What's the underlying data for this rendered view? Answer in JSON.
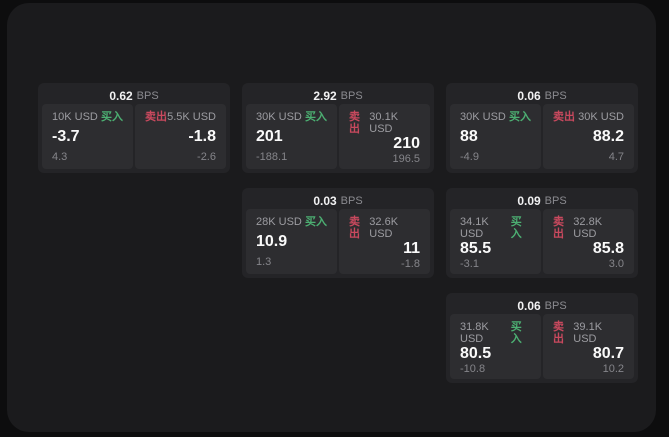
{
  "colors": {
    "buy_green": "#4caf72",
    "sell_red": "#c9495e",
    "panel_bg": "#1b1b1d",
    "card_bg": "#242427",
    "pane_bg": "#2d2d30"
  },
  "cards": [
    {
      "bps_value": "0.62",
      "bps_unit": "BPS",
      "buy": {
        "notional": "10K USD",
        "side_label": "买入",
        "value": "-3.7",
        "delta": "4.3"
      },
      "sell": {
        "side_label": "卖出",
        "notional": "5.5K USD",
        "value": "-1.8",
        "delta": "-2.6"
      }
    },
    {
      "bps_value": "2.92",
      "bps_unit": "BPS",
      "buy": {
        "notional": "30K USD",
        "side_label": "买入",
        "value": "201",
        "delta": "-188.1"
      },
      "sell": {
        "side_label": "卖出",
        "notional": "30.1K USD",
        "value": "210",
        "delta": "196.5"
      }
    },
    {
      "bps_value": "0.06",
      "bps_unit": "BPS",
      "buy": {
        "notional": "30K USD",
        "side_label": "买入",
        "value": "88",
        "delta": "-4.9"
      },
      "sell": {
        "side_label": "卖出",
        "notional": "30K USD",
        "value": "88.2",
        "delta": "4.7"
      }
    },
    {
      "bps_value": "0.03",
      "bps_unit": "BPS",
      "buy": {
        "notional": "28K USD",
        "side_label": "买入",
        "value": "10.9",
        "delta": "1.3"
      },
      "sell": {
        "side_label": "卖出",
        "notional": "32.6K USD",
        "value": "11",
        "delta": "-1.8"
      }
    },
    {
      "bps_value": "0.09",
      "bps_unit": "BPS",
      "buy": {
        "notional": "34.1K USD",
        "side_label": "买入",
        "value": "85.5",
        "delta": "-3.1"
      },
      "sell": {
        "side_label": "卖出",
        "notional": "32.8K USD",
        "value": "85.8",
        "delta": "3.0"
      }
    },
    {
      "bps_value": "0.06",
      "bps_unit": "BPS",
      "buy": {
        "notional": "31.8K USD",
        "side_label": "买入",
        "value": "80.5",
        "delta": "-10.8"
      },
      "sell": {
        "side_label": "卖出",
        "notional": "39.1K USD",
        "value": "80.7",
        "delta": "10.2"
      }
    }
  ]
}
